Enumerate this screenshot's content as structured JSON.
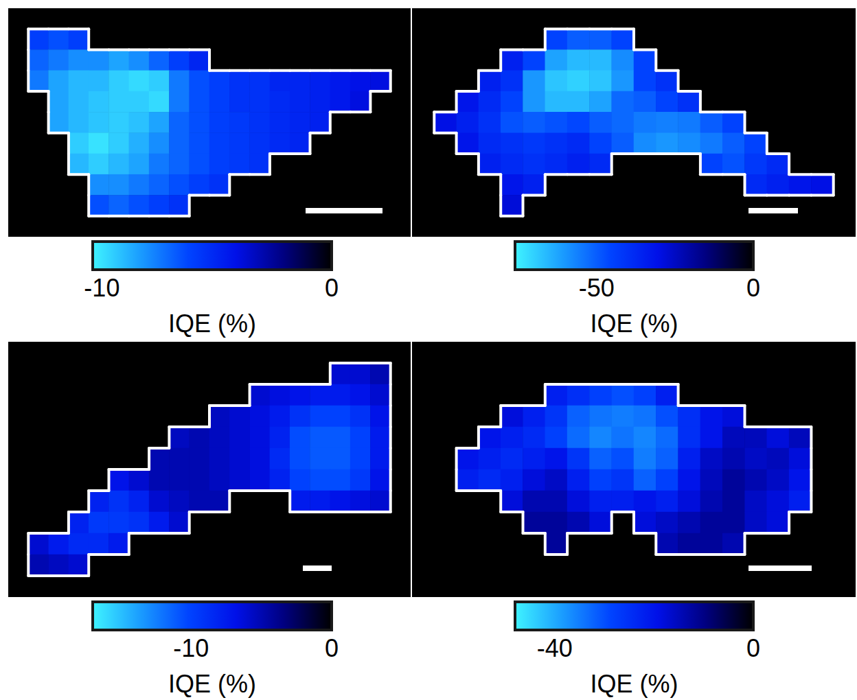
{
  "chart_data": [
    {
      "type": "heatmap",
      "tick_labels": false,
      "colorbar_title": "IQE (%)",
      "colorbar_lim": [
        -10.4,
        0
      ],
      "colorbar_ticks": [
        -10,
        0
      ],
      "cells": [
        [
          null,
          null,
          null,
          null,
          null,
          null,
          null,
          null,
          null,
          null,
          null,
          null,
          null,
          null,
          null,
          null,
          null,
          null,
          null,
          null
        ],
        [
          null,
          -6,
          -6.5,
          -6,
          null,
          null,
          null,
          null,
          null,
          null,
          null,
          null,
          null,
          null,
          null,
          null,
          null,
          null,
          null,
          null
        ],
        [
          null,
          -7,
          -7.5,
          -8,
          -8,
          -8.5,
          -8,
          -7,
          -6,
          -5,
          null,
          null,
          null,
          null,
          null,
          null,
          null,
          null,
          null,
          null
        ],
        [
          null,
          -7.5,
          -8.5,
          -9,
          -9,
          -9.5,
          -9.8,
          -9.5,
          -7.5,
          -6.5,
          -6,
          -5.5,
          -5.5,
          -5,
          -5,
          -4.8,
          -4.5,
          -4.2,
          -4,
          null
        ],
        [
          null,
          null,
          -8.5,
          -9,
          -9.3,
          -9.5,
          -9.5,
          -9.8,
          -7.5,
          -6.5,
          -6,
          -5.5,
          -5.5,
          -5.2,
          -5,
          -4.8,
          -4.5,
          -4,
          null,
          null
        ],
        [
          null,
          null,
          -8.5,
          -9,
          -9.3,
          -9.5,
          -9.2,
          -8.5,
          -7,
          -6.5,
          -6,
          -5.8,
          -5.5,
          -5.2,
          -5,
          -4.8,
          null,
          null,
          null,
          null
        ],
        [
          null,
          null,
          null,
          -9.5,
          -10,
          -9.5,
          -8.8,
          -8,
          -7,
          -6.5,
          -6,
          -5.8,
          -5.5,
          -5.2,
          -5,
          null,
          null,
          null,
          null,
          null
        ],
        [
          null,
          null,
          null,
          -9,
          -9.5,
          -9,
          -8.5,
          -7.5,
          -7,
          -6.5,
          -6,
          -5.8,
          -5.5,
          null,
          null,
          null,
          null,
          null,
          null,
          null
        ],
        [
          null,
          null,
          null,
          null,
          -8,
          -8,
          -7.5,
          -7,
          -6.5,
          -6,
          -5.5,
          null,
          null,
          null,
          null,
          null,
          null,
          null,
          null,
          null
        ],
        [
          null,
          null,
          null,
          null,
          -6.5,
          -7,
          -6.5,
          -6,
          -5.5,
          null,
          null,
          null,
          null,
          null,
          null,
          null,
          null,
          null,
          null,
          null
        ],
        [
          null,
          null,
          null,
          null,
          null,
          null,
          null,
          null,
          null,
          null,
          null,
          null,
          null,
          null,
          null,
          null,
          null,
          null,
          null,
          null
        ]
      ]
    },
    {
      "type": "heatmap",
      "tick_labels": false,
      "colorbar_title": "IQE (%)",
      "colorbar_lim": [
        -76,
        0
      ],
      "colorbar_ticks": [
        -50,
        0
      ],
      "cells": [
        [
          null,
          null,
          null,
          null,
          null,
          null,
          null,
          null,
          null,
          null,
          null,
          null,
          null,
          null,
          null,
          null,
          null,
          null,
          null,
          null
        ],
        [
          null,
          null,
          null,
          null,
          null,
          null,
          -45,
          -50,
          -50,
          -45,
          null,
          null,
          null,
          null,
          null,
          null,
          null,
          null,
          null,
          null
        ],
        [
          null,
          null,
          null,
          null,
          -35,
          -45,
          -62,
          -66,
          -66,
          -58,
          -45,
          null,
          null,
          null,
          null,
          null,
          null,
          null,
          null,
          null
        ],
        [
          null,
          null,
          null,
          -35,
          -40,
          -60,
          -68,
          -70,
          -68,
          -60,
          -45,
          -40,
          null,
          null,
          null,
          null,
          null,
          null,
          null,
          null
        ],
        [
          null,
          null,
          -32,
          -38,
          -45,
          -60,
          -66,
          -66,
          -62,
          -52,
          -50,
          -45,
          -40,
          null,
          null,
          null,
          null,
          null,
          null,
          null
        ],
        [
          null,
          -30,
          -35,
          -40,
          -48,
          -50,
          -48,
          -46,
          -50,
          -52,
          -55,
          -56,
          -55,
          -50,
          -45,
          null,
          null,
          null,
          null,
          null
        ],
        [
          null,
          null,
          -32,
          -38,
          -40,
          -42,
          -40,
          -38,
          -45,
          -50,
          -58,
          -60,
          -58,
          -55,
          -50,
          -45,
          null,
          null,
          null,
          null
        ],
        [
          null,
          null,
          null,
          -35,
          -38,
          -40,
          -38,
          -35,
          -38,
          null,
          null,
          null,
          null,
          -45,
          -48,
          -42,
          -38,
          null,
          null,
          null
        ],
        [
          null,
          null,
          null,
          null,
          -32,
          -35,
          null,
          null,
          null,
          null,
          null,
          null,
          null,
          null,
          null,
          -38,
          -35,
          -32,
          -30,
          null
        ],
        [
          null,
          null,
          null,
          null,
          -28,
          null,
          null,
          null,
          null,
          null,
          null,
          null,
          null,
          null,
          null,
          null,
          null,
          null,
          null,
          null
        ],
        [
          null,
          null,
          null,
          null,
          null,
          null,
          null,
          null,
          null,
          null,
          null,
          null,
          null,
          null,
          null,
          null,
          null,
          null,
          null,
          null
        ]
      ]
    },
    {
      "type": "heatmap",
      "tick_labels": false,
      "colorbar_title": "IQE (%)",
      "colorbar_lim": [
        -17,
        0
      ],
      "colorbar_ticks": [
        -10,
        0
      ],
      "cells": [
        [
          null,
          null,
          null,
          null,
          null,
          null,
          null,
          null,
          null,
          null,
          null,
          null,
          null,
          null,
          null,
          null,
          null,
          null,
          null,
          null
        ],
        [
          null,
          null,
          null,
          null,
          null,
          null,
          null,
          null,
          null,
          null,
          null,
          null,
          null,
          null,
          null,
          null,
          -6,
          -6,
          -5,
          null
        ],
        [
          null,
          null,
          null,
          null,
          null,
          null,
          null,
          null,
          null,
          null,
          null,
          null,
          -6,
          -6.5,
          -7,
          -7.5,
          -7.5,
          -7,
          -6,
          null
        ],
        [
          null,
          null,
          null,
          null,
          null,
          null,
          null,
          null,
          null,
          null,
          -5.5,
          -6,
          -6.5,
          -7.5,
          -9,
          -10,
          -10,
          -9,
          -7,
          null
        ],
        [
          null,
          null,
          null,
          null,
          null,
          null,
          null,
          null,
          -5.5,
          -5,
          -5.5,
          -6,
          -6.5,
          -8,
          -10.5,
          -11,
          -11,
          -10,
          -7.5,
          null
        ],
        [
          null,
          null,
          null,
          null,
          null,
          null,
          null,
          -5,
          -5,
          -5,
          -5.5,
          -6,
          -6.5,
          -8.5,
          -10.5,
          -11,
          -11,
          -10,
          -7.5,
          null
        ],
        [
          null,
          null,
          null,
          null,
          null,
          -7,
          -6,
          -5,
          -5,
          -5,
          -5.5,
          -6,
          -6.5,
          -8,
          -10,
          -10.5,
          -10.5,
          -9.5,
          -7,
          null
        ],
        [
          null,
          null,
          null,
          null,
          -8,
          -9,
          -8,
          -6,
          -5.5,
          -5,
          -5,
          null,
          null,
          null,
          -7.5,
          -7.5,
          -7,
          -6.5,
          -6,
          null
        ],
        [
          null,
          null,
          null,
          -8,
          -9.5,
          -9.5,
          -9,
          -7.5,
          -6,
          null,
          null,
          null,
          null,
          null,
          null,
          null,
          null,
          null,
          null,
          null
        ],
        [
          null,
          -6,
          -7.5,
          -8.5,
          -8.5,
          -7.5,
          null,
          null,
          null,
          null,
          null,
          null,
          null,
          null,
          null,
          null,
          null,
          null,
          null,
          null
        ],
        [
          null,
          -5,
          -5.5,
          -6,
          null,
          null,
          null,
          null,
          null,
          null,
          null,
          null,
          null,
          null,
          null,
          null,
          null,
          null,
          null,
          null
        ],
        [
          null,
          null,
          null,
          null,
          null,
          null,
          null,
          null,
          null,
          null,
          null,
          null,
          null,
          null,
          null,
          null,
          null,
          null,
          null,
          null
        ]
      ]
    },
    {
      "type": "heatmap",
      "tick_labels": false,
      "colorbar_title": "IQE (%)",
      "colorbar_lim": [
        -48,
        0
      ],
      "colorbar_ticks": [
        -40,
        0
      ],
      "cells": [
        [
          null,
          null,
          null,
          null,
          null,
          null,
          null,
          null,
          null,
          null,
          null,
          null,
          null,
          null,
          null,
          null,
          null,
          null,
          null,
          null
        ],
        [
          null,
          null,
          null,
          null,
          null,
          null,
          null,
          null,
          null,
          null,
          null,
          null,
          null,
          null,
          null,
          null,
          null,
          null,
          null,
          null
        ],
        [
          null,
          null,
          null,
          null,
          null,
          null,
          -22,
          -25,
          -28,
          -30,
          -28,
          -22,
          null,
          null,
          null,
          null,
          null,
          null,
          null,
          null
        ],
        [
          null,
          null,
          null,
          null,
          -18,
          -22,
          -26,
          -32,
          -34,
          -35,
          -34,
          -30,
          -25,
          -20,
          -18,
          null,
          null,
          null,
          null,
          null
        ],
        [
          null,
          null,
          null,
          -20,
          -22,
          -24,
          -28,
          -33,
          -36,
          -34,
          -36,
          -33,
          -25,
          -20,
          -15,
          -15,
          -18,
          -15,
          null,
          null
        ],
        [
          null,
          null,
          -20,
          -22,
          -24,
          -22,
          -20,
          -26,
          -32,
          -30,
          -35,
          -32,
          -22,
          -16,
          -14,
          -16,
          -15,
          -18,
          null,
          null
        ],
        [
          null,
          null,
          -22,
          -24,
          -22,
          -18,
          -16,
          -22,
          -28,
          -26,
          -32,
          -28,
          -20,
          -15,
          -12,
          -14,
          -16,
          -20,
          null,
          null
        ],
        [
          null,
          null,
          null,
          null,
          -18,
          -14,
          -14,
          -18,
          -22,
          -22,
          -20,
          -22,
          -18,
          -14,
          -12,
          -16,
          -18,
          -22,
          null,
          null
        ],
        [
          null,
          null,
          null,
          null,
          null,
          -12,
          -12,
          -14,
          -18,
          null,
          -18,
          -16,
          -14,
          -12,
          -12,
          -16,
          -18,
          null,
          null,
          null
        ],
        [
          null,
          null,
          null,
          null,
          null,
          null,
          -12,
          null,
          null,
          null,
          null,
          -14,
          -12,
          -12,
          -14,
          null,
          null,
          null,
          null,
          null
        ],
        [
          null,
          null,
          null,
          null,
          null,
          null,
          null,
          null,
          null,
          null,
          null,
          null,
          null,
          null,
          null,
          null,
          null,
          null,
          null,
          null
        ],
        [
          null,
          null,
          null,
          null,
          null,
          null,
          null,
          null,
          null,
          null,
          null,
          null,
          null,
          null,
          null,
          null,
          null,
          null,
          null,
          null
        ]
      ]
    }
  ]
}
